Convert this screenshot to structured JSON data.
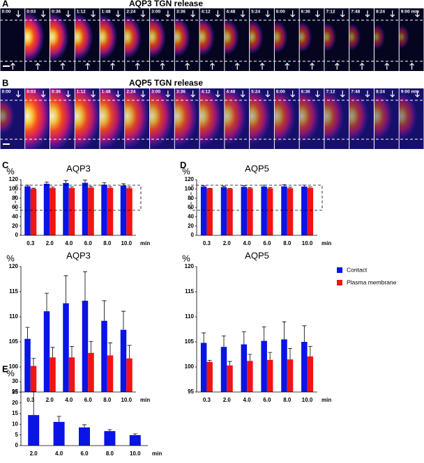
{
  "figure": {
    "panel_labels": [
      "A",
      "B",
      "C",
      "D",
      "E"
    ],
    "movies": [
      {
        "title": "AQP3 TGN release",
        "frame_times": [
          "0:00",
          "0:03",
          "0:36",
          "1:12",
          "1:48",
          "2:24",
          "3:00",
          "3:36",
          "4:12",
          "4:48",
          "5:24",
          "6:00",
          "6:36",
          "7:12",
          "7:48",
          "8:24",
          "9:00 min"
        ]
      },
      {
        "title": "AQP5 TGN release",
        "frame_times": [
          "0:00",
          "0:03",
          "0:36",
          "1:12",
          "1:48",
          "2:24",
          "3:00",
          "3:36",
          "4:12",
          "4:48",
          "5:24",
          "6:00",
          "6:36",
          "7:12",
          "7:48",
          "8:24",
          "9:00 min"
        ]
      }
    ]
  },
  "chart_data": [
    {
      "type": "bar",
      "title": "AQP3",
      "y_unit": "%",
      "x_unit": "min",
      "categories": [
        "0.3",
        "2.0",
        "4.0",
        "6.0",
        "8.0",
        "10.0"
      ],
      "series": [
        {
          "color": "#0a14e6",
          "values": [
            105.6,
            111.1,
            112.7,
            113.2,
            109.2,
            107.4
          ],
          "errors": [
            2.3,
            3.6,
            5.5,
            5.8,
            4.0,
            3.7
          ]
        },
        {
          "color": "#f01414",
          "values": [
            100.2,
            101.9,
            101.9,
            102.8,
            102.3,
            101.7
          ],
          "errors": [
            1.5,
            2.0,
            2.2,
            2.3,
            2.5,
            2.6
          ]
        }
      ],
      "ylim": [
        0,
        120
      ],
      "yticks": [
        0,
        20,
        40,
        60,
        80,
        100,
        120
      ]
    },
    {
      "type": "bar",
      "title": "AQP5",
      "y_unit": "%",
      "x_unit": "min",
      "categories": [
        "0.3",
        "2.0",
        "4.0",
        "6.0",
        "8.0",
        "10.0"
      ],
      "series": [
        {
          "color": "#0a14e6",
          "values": [
            104.8,
            104.0,
            104.5,
            105.2,
            105.5,
            105.0
          ],
          "errors": [
            2.0,
            2.2,
            2.5,
            2.8,
            3.5,
            3.2
          ]
        },
        {
          "color": "#f01414",
          "values": [
            101.0,
            100.3,
            101.2,
            101.4,
            101.5,
            102.1
          ],
          "errors": [
            0.3,
            0.8,
            1.3,
            1.5,
            2.2,
            2.0
          ]
        }
      ],
      "ylim": [
        0,
        120
      ],
      "yticks": [
        0,
        20,
        40,
        60,
        80,
        100,
        120
      ]
    },
    {
      "type": "bar",
      "title": "AQP3",
      "y_unit": "%",
      "x_unit": "min",
      "categories": [
        "0.3",
        "2.0",
        "4.0",
        "6.0",
        "8.0",
        "10.0"
      ],
      "series": [
        {
          "color": "#0a14e6",
          "values": [
            105.6,
            111.1,
            112.7,
            113.2,
            109.2,
            107.4
          ],
          "errors": [
            2.3,
            3.6,
            5.5,
            5.8,
            4.0,
            3.7
          ]
        },
        {
          "color": "#f01414",
          "values": [
            100.2,
            101.9,
            101.9,
            102.8,
            102.3,
            101.7
          ],
          "errors": [
            1.5,
            2.0,
            2.2,
            2.3,
            2.5,
            2.6
          ]
        }
      ],
      "ylim": [
        95,
        120
      ],
      "yticks": [
        95,
        100,
        105,
        110,
        115,
        120
      ]
    },
    {
      "type": "bar",
      "title": "AQP5",
      "y_unit": "%",
      "x_unit": "min",
      "categories": [
        "0.3",
        "2.0",
        "4.0",
        "6.0",
        "8.0",
        "10.0"
      ],
      "series": [
        {
          "name": "Contact",
          "color": "#0a14e6",
          "values": [
            104.8,
            104.0,
            104.5,
            105.2,
            105.5,
            105.0
          ],
          "errors": [
            2.0,
            2.2,
            2.5,
            2.8,
            3.5,
            3.2
          ]
        },
        {
          "name": "Plasma membrane",
          "color": "#f01414",
          "values": [
            101.0,
            100.3,
            101.2,
            101.4,
            101.5,
            102.1
          ],
          "errors": [
            0.3,
            0.8,
            1.3,
            1.5,
            2.2,
            2.0
          ]
        }
      ],
      "ylim": [
        95,
        120
      ],
      "yticks": [
        95,
        100,
        105,
        110,
        115,
        120
      ],
      "legend": "right"
    },
    {
      "type": "bar",
      "y_unit": "%",
      "x_unit": "min",
      "categories": [
        "2.0",
        "4.0",
        "6.0",
        "8.0",
        "10.0"
      ],
      "series": [
        {
          "color": "#0a14e6",
          "values": [
            14.3,
            11.1,
            8.5,
            6.8,
            4.9
          ],
          "errors": [
            11.0,
            2.6,
            1.3,
            0.7,
            0.6
          ]
        }
      ],
      "ylim": [
        0,
        30
      ],
      "yticks": [
        0,
        5,
        10,
        15,
        20,
        25,
        30
      ]
    }
  ]
}
